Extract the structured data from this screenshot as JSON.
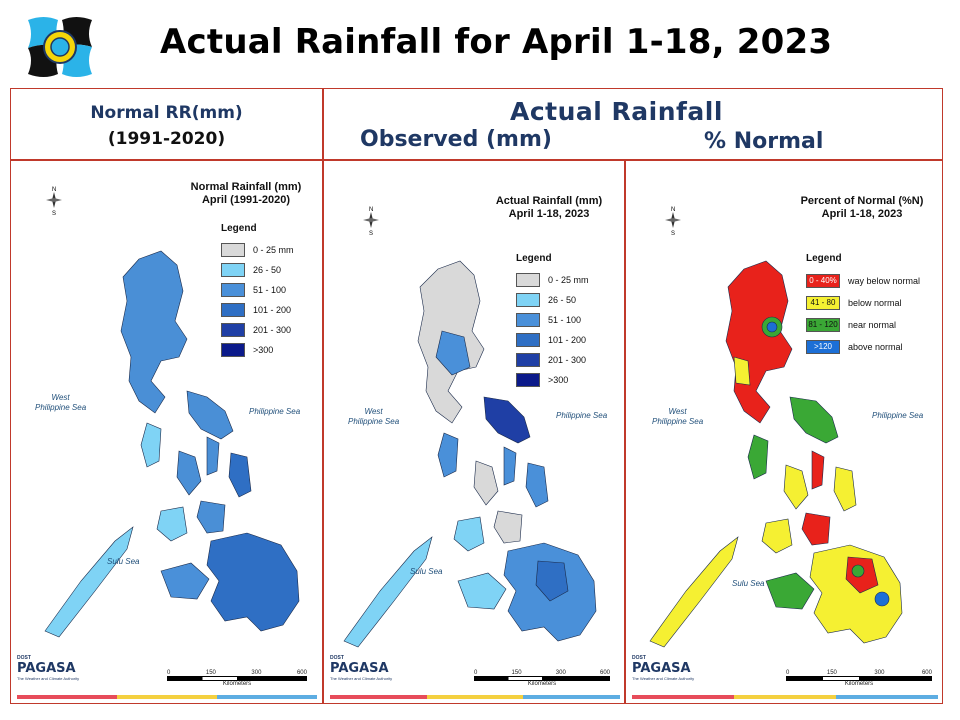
{
  "title": "Actual Rainfall for April 1-18, 2023",
  "header": {
    "left_line1": "Normal RR(mm)",
    "left_line2": "(1991-2020)",
    "right_title": "Actual Rainfall",
    "right_observed": "Observed (mm)",
    "right_percent": "% Normal"
  },
  "panels": [
    {
      "title_line1": "Normal Rainfall (mm)",
      "title_line2": "April (1991-2020)",
      "legend_title": "Legend",
      "legend": [
        {
          "label": "0 - 25 mm",
          "color": "#d9d9d9"
        },
        {
          "label": "26 - 50",
          "color": "#7fd3f5"
        },
        {
          "label": "51 - 100",
          "color": "#4a90d9"
        },
        {
          "label": "101 - 200",
          "color": "#2f6fc4"
        },
        {
          "label": "201 - 300",
          "color": "#1f3fa5"
        },
        {
          "label": ">300",
          "color": "#0b1a8a"
        }
      ],
      "sea_west": "West\nPhilippine Sea",
      "sea_east": "Philippine Sea",
      "sea_sulu": "Sulu Sea"
    },
    {
      "title_line1": "Actual Rainfall (mm)",
      "title_line2": "April 1-18, 2023",
      "legend_title": "Legend",
      "legend": [
        {
          "label": "0 - 25 mm",
          "color": "#d9d9d9"
        },
        {
          "label": "26 - 50",
          "color": "#7fd3f5"
        },
        {
          "label": "51 - 100",
          "color": "#4a90d9"
        },
        {
          "label": "101 - 200",
          "color": "#2f6fc4"
        },
        {
          "label": "201 - 300",
          "color": "#1f3fa5"
        },
        {
          "label": ">300",
          "color": "#0b1a8a"
        }
      ],
      "sea_west": "West\nPhilippine Sea",
      "sea_east": "Philippine Sea",
      "sea_sulu": "Sulu Sea"
    },
    {
      "title_line1": "Percent of Normal (%N)",
      "title_line2": "April 1-18, 2023",
      "legend_title": "Legend",
      "legend": [
        {
          "swatch": "0 - 40%",
          "label": "way below normal",
          "color": "#e8221b"
        },
        {
          "swatch": "41 - 80",
          "label": "below normal",
          "color": "#f5f032"
        },
        {
          "swatch": "81 - 120",
          "label": "near normal",
          "color": "#3aa835"
        },
        {
          "swatch": ">120",
          "label": "above normal",
          "color": "#1c6fd6"
        }
      ],
      "sea_west": "West\nPhilippine Sea",
      "sea_east": "Philippine Sea",
      "sea_sulu": "Sulu Sea"
    }
  ],
  "scale": {
    "ticks": [
      "0",
      "150",
      "300",
      "600"
    ],
    "unit": "Kilometers"
  },
  "footer_logo": {
    "small": "DOST",
    "brand": "PAGASA",
    "tagline": "The Weather and Climate Authority"
  },
  "colors": {
    "accent": "#c0392b",
    "header_text": "#1f3864",
    "stripe": [
      "#e74c5a",
      "#f4d03f",
      "#5dade2"
    ]
  }
}
